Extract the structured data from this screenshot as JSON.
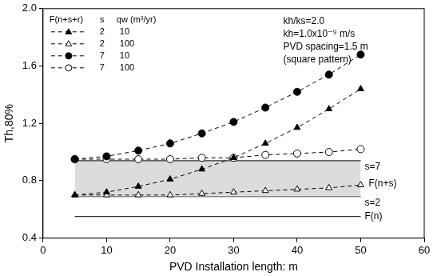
{
  "chart_data": {
    "type": "line",
    "x_label": "PVD Installation length: m",
    "y_label": "Th,80%",
    "xlim": [
      0,
      60
    ],
    "xticks": [
      0,
      10,
      20,
      30,
      40,
      50,
      60
    ],
    "ylim": [
      0.4,
      2
    ],
    "yticks": [
      0.4,
      0.8,
      1.2,
      1.6,
      {
        "value": 2,
        "label": "2.0"
      }
    ],
    "grid": false,
    "legend": "upper left",
    "legend_header": [
      "F(n+s+r)",
      "s",
      "qw (m³/yr)"
    ],
    "x": [
      5,
      10,
      15,
      20,
      25,
      30,
      35,
      40,
      45,
      50
    ],
    "series": [
      {
        "s": 2,
        "qw": 10,
        "color": "#000000",
        "marker": "filled_triangle",
        "line_style": "dashed",
        "values": [
          0.7,
          0.72,
          0.76,
          0.81,
          0.88,
          0.96,
          1.06,
          1.17,
          1.3,
          1.44
        ]
      },
      {
        "s": 2,
        "qw": 100,
        "color": "#000000",
        "marker": "open_triangle",
        "line_style": "dashed",
        "values": [
          0.7,
          0.7,
          0.7,
          0.7,
          0.71,
          0.72,
          0.73,
          0.74,
          0.75,
          0.77
        ]
      },
      {
        "s": 7,
        "qw": 10,
        "color": "#000000",
        "marker": "filled_circle",
        "line_style": "dashed",
        "values": [
          0.95,
          0.97,
          1.01,
          1.06,
          1.13,
          1.21,
          1.31,
          1.42,
          1.54,
          1.68
        ]
      },
      {
        "s": 7,
        "qw": 100,
        "color": "#000000",
        "marker": "open_circle",
        "line_style": "dashed",
        "values": [
          0.95,
          0.95,
          0.95,
          0.95,
          0.96,
          0.96,
          0.98,
          0.99,
          1.0,
          1.02
        ]
      }
    ],
    "reference_lines": [
      {
        "label": "s=7",
        "y": 0.94,
        "x": [
          5,
          50
        ],
        "color": "#333333",
        "line_style": "solid"
      },
      {
        "label": "s=2",
        "y": 0.69,
        "x": [
          5,
          50
        ],
        "color": "#333333",
        "line_style": "solid"
      },
      {
        "label": "F(n)",
        "y": 0.55,
        "x": [
          5,
          50
        ],
        "color": "#333333",
        "line_style": "solid"
      }
    ],
    "band": {
      "label": "F(n+s)",
      "between": [
        "s=7",
        "s=2"
      ],
      "color": "#dcdcdc"
    },
    "annotations": [
      "kh/ks=2.0",
      "kh=1.0x10⁻⁹ m/s",
      "PVD spacing=1.5 m",
      "(square pattern)"
    ]
  }
}
